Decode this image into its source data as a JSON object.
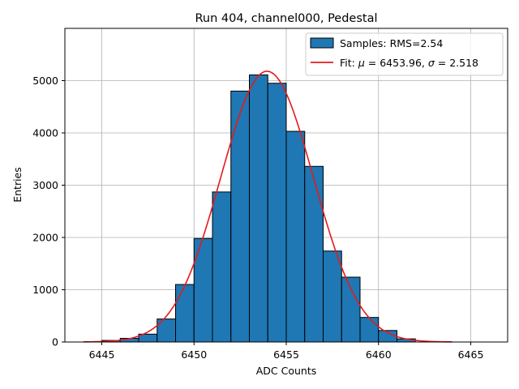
{
  "chart_data": {
    "type": "bar",
    "title": "Run 404, channel000, Pedestal",
    "xlabel": "ADC Counts",
    "ylabel": "Entries",
    "xlim": [
      6443,
      6467
    ],
    "ylim": [
      0,
      6000
    ],
    "xticks": [
      6445,
      6450,
      6455,
      6460,
      6465
    ],
    "yticks": [
      0,
      1000,
      2000,
      3000,
      4000,
      5000
    ],
    "grid": true,
    "legend_position": "top-right",
    "histogram": {
      "name": "Samples: RMS=2.54",
      "bin_width": 1,
      "bin_starts": [
        6445,
        6446,
        6447,
        6448,
        6449,
        6450,
        6451,
        6452,
        6453,
        6454,
        6455,
        6456,
        6457,
        6458,
        6459,
        6460,
        6461
      ],
      "values": [
        30,
        70,
        150,
        440,
        1100,
        1980,
        2870,
        4800,
        5110,
        4950,
        4030,
        3360,
        1740,
        1240,
        470,
        220,
        60
      ],
      "color": "#1f77b4",
      "edge_color": "#000000"
    },
    "fit": {
      "name_prefix": "Fit: ",
      "name_mu": "μ",
      "name_mid": " = 6453.96, ",
      "name_sigma": "σ",
      "name_end": " = 2.518",
      "mu": 6453.96,
      "sigma": 2.518,
      "amplitude": 5180,
      "x_range": [
        6444,
        6464
      ],
      "color": "#e41a1c"
    }
  }
}
